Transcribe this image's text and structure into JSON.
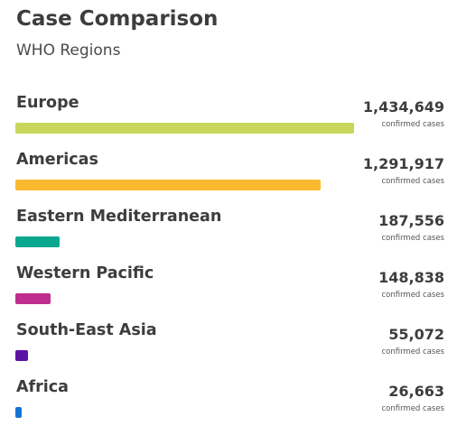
{
  "header": {
    "title": "Case Comparison",
    "subtitle": "WHO Regions"
  },
  "chart_data": {
    "type": "bar",
    "orientation": "horizontal",
    "title": "Case Comparison",
    "subtitle": "WHO Regions",
    "unit_label": "confirmed cases",
    "categories": [
      "Europe",
      "Americas",
      "Eastern Mediterranean",
      "Western Pacific",
      "South-East Asia",
      "Africa"
    ],
    "values": [
      1434649,
      1291917,
      187556,
      148838,
      55072,
      26663
    ],
    "value_labels": [
      "1,434,649",
      "1,291,917",
      "187,556",
      "148,838",
      "55,072",
      "26,663"
    ],
    "colors": [
      "#c8d65b",
      "#f9b92e",
      "#0aa88e",
      "#be2e8e",
      "#5b13a5",
      "#1474d4"
    ],
    "xlim": [
      0,
      1434649
    ],
    "grid": false,
    "legend": "none"
  }
}
